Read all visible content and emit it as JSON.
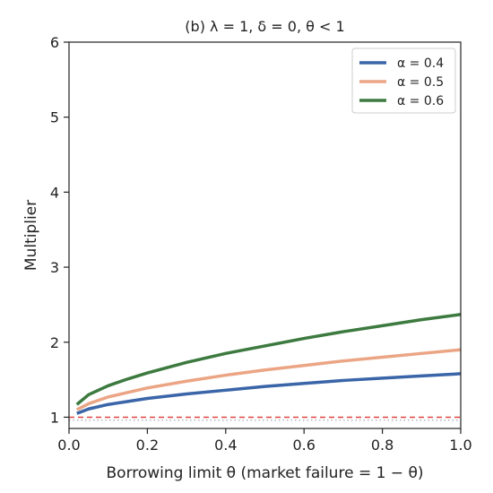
{
  "chart_data": {
    "type": "line",
    "title": "(b) λ = 1, δ = 0, θ < 1",
    "xlabel": "Borrowing limit θ  (market failure = 1 − θ)",
    "ylabel": "Multiplier",
    "xlim": [
      0.0,
      1.0
    ],
    "ylim": [
      0.85,
      6.0
    ],
    "xticks": [
      0.0,
      0.2,
      0.4,
      0.6,
      0.8,
      1.0
    ],
    "xtick_labels": [
      "0.0",
      "0.2",
      "0.4",
      "0.6",
      "0.8",
      "1.0"
    ],
    "yticks": [
      1,
      2,
      3,
      4,
      5,
      6
    ],
    "ytick_labels": [
      "1",
      "2",
      "3",
      "4",
      "5",
      "6"
    ],
    "grid": false,
    "legend_position": "top-right",
    "series": [
      {
        "name": "α = 0.4",
        "color": "#3a65a8",
        "x": [
          0.02,
          0.05,
          0.1,
          0.15,
          0.2,
          0.3,
          0.4,
          0.5,
          0.6,
          0.7,
          0.8,
          0.9,
          1.0
        ],
        "y": [
          1.05,
          1.11,
          1.17,
          1.21,
          1.25,
          1.31,
          1.36,
          1.41,
          1.45,
          1.49,
          1.52,
          1.55,
          1.58
        ]
      },
      {
        "name": "α = 0.5",
        "color": "#eba585",
        "x": [
          0.02,
          0.05,
          0.1,
          0.15,
          0.2,
          0.3,
          0.4,
          0.5,
          0.6,
          0.7,
          0.8,
          0.9,
          1.0
        ],
        "y": [
          1.1,
          1.18,
          1.27,
          1.33,
          1.39,
          1.48,
          1.56,
          1.63,
          1.69,
          1.75,
          1.8,
          1.85,
          1.9
        ]
      },
      {
        "name": "α = 0.6",
        "color": "#3d7a3f",
        "x": [
          0.02,
          0.05,
          0.1,
          0.15,
          0.2,
          0.3,
          0.4,
          0.5,
          0.6,
          0.7,
          0.8,
          0.9,
          1.0
        ],
        "y": [
          1.17,
          1.3,
          1.42,
          1.51,
          1.59,
          1.73,
          1.85,
          1.95,
          2.05,
          2.14,
          2.22,
          2.3,
          2.37
        ]
      }
    ],
    "reference_lines": [
      {
        "y": 1.0,
        "style": "dashed",
        "color": "#e0463f"
      },
      {
        "y": 0.96,
        "style": "dotted",
        "color": "#9a9ab0"
      }
    ]
  }
}
